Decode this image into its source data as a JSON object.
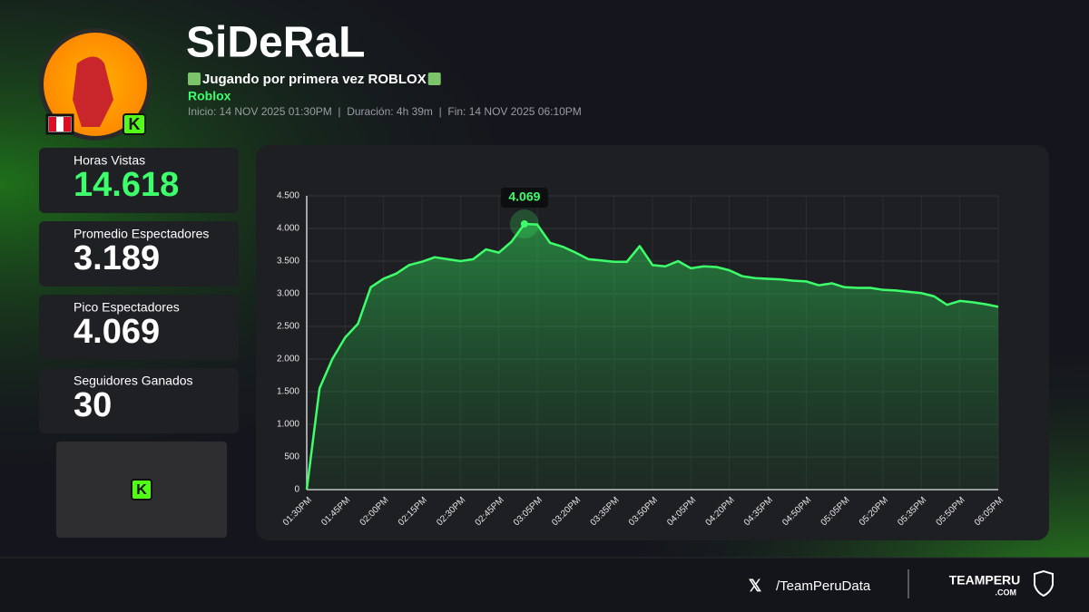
{
  "header": {
    "title": "SiDeRaL",
    "stream_title": "Jugando por primera vez ROBLOX",
    "game": "Roblox",
    "info": "Inicio: 14 NOV 2025 01:30PM  |  Duración: 4h 39m  |  Fin: 14 NOV 2025 06:10PM"
  },
  "stats": [
    {
      "label": "Horas Vistas",
      "value": "14.618"
    },
    {
      "label": "Promedio Espectadores",
      "value": "3.189"
    },
    {
      "label": "Pico Espectadores",
      "value": "4.069"
    },
    {
      "label": "Seguidores Ganados",
      "value": "30"
    }
  ],
  "chart_data": {
    "type": "area",
    "color": "#3dff6b",
    "grid": true,
    "categories": [
      "01:30PM",
      null,
      null,
      "01:45PM",
      null,
      null,
      "02:00PM",
      null,
      null,
      "02:15PM",
      null,
      null,
      "02:30PM",
      null,
      null,
      "02:45PM",
      null,
      null,
      "03:05PM",
      null,
      null,
      "03:20PM",
      null,
      null,
      "03:35PM",
      null,
      null,
      "03:50PM",
      null,
      null,
      "04:05PM",
      null,
      null,
      "04:20PM",
      null,
      null,
      "04:35PM",
      null,
      null,
      "04:50PM",
      null,
      null,
      "05:05PM",
      null,
      null,
      "05:20PM",
      null,
      null,
      "05:35PM",
      null,
      null,
      "05:50PM",
      null,
      null,
      "06:05PM"
    ],
    "values": [
      0,
      1550,
      2000,
      2330,
      2540,
      3100,
      3230,
      3310,
      3440,
      3490,
      3560,
      3530,
      3500,
      3530,
      3680,
      3630,
      3800,
      4069,
      4060,
      3780,
      3720,
      3630,
      3530,
      3510,
      3490,
      3490,
      3730,
      3440,
      3420,
      3500,
      3390,
      3420,
      3410,
      3360,
      3270,
      3240,
      3230,
      3220,
      3200,
      3190,
      3130,
      3160,
      3100,
      3090,
      3090,
      3060,
      3050,
      3030,
      3010,
      2960,
      2830,
      2890,
      2870,
      2840,
      2800
    ],
    "value_labels": [
      null,
      null,
      null,
      null,
      null,
      null,
      null,
      null,
      null,
      null,
      null,
      null,
      null,
      null,
      null,
      null,
      null,
      "4.069",
      null,
      null,
      null,
      null,
      null,
      null,
      null,
      null,
      null,
      null,
      null,
      null,
      null,
      null,
      null,
      null,
      null,
      null,
      null,
      null,
      null,
      null,
      null,
      null,
      null,
      null,
      null,
      null,
      null,
      null,
      null,
      null,
      null,
      null,
      null,
      null,
      null
    ],
    "ylim": [
      0,
      4500
    ],
    "yticks": [
      0,
      500,
      {
        "value": 1000,
        "label": "1.000"
      },
      {
        "value": 1500,
        "label": "1.500"
      },
      {
        "value": 2000,
        "label": "2.000"
      },
      {
        "value": 2500,
        "label": "2.500"
      },
      {
        "value": 3000,
        "label": "3.000"
      },
      {
        "value": 3500,
        "label": "3.500"
      },
      {
        "value": 4000,
        "label": "4.000"
      },
      {
        "value": 4500,
        "label": "4.500"
      }
    ]
  },
  "footer": {
    "handle": "/TeamPeruData",
    "brand": "TEAMPERU",
    "brand_sub": ".COM"
  }
}
